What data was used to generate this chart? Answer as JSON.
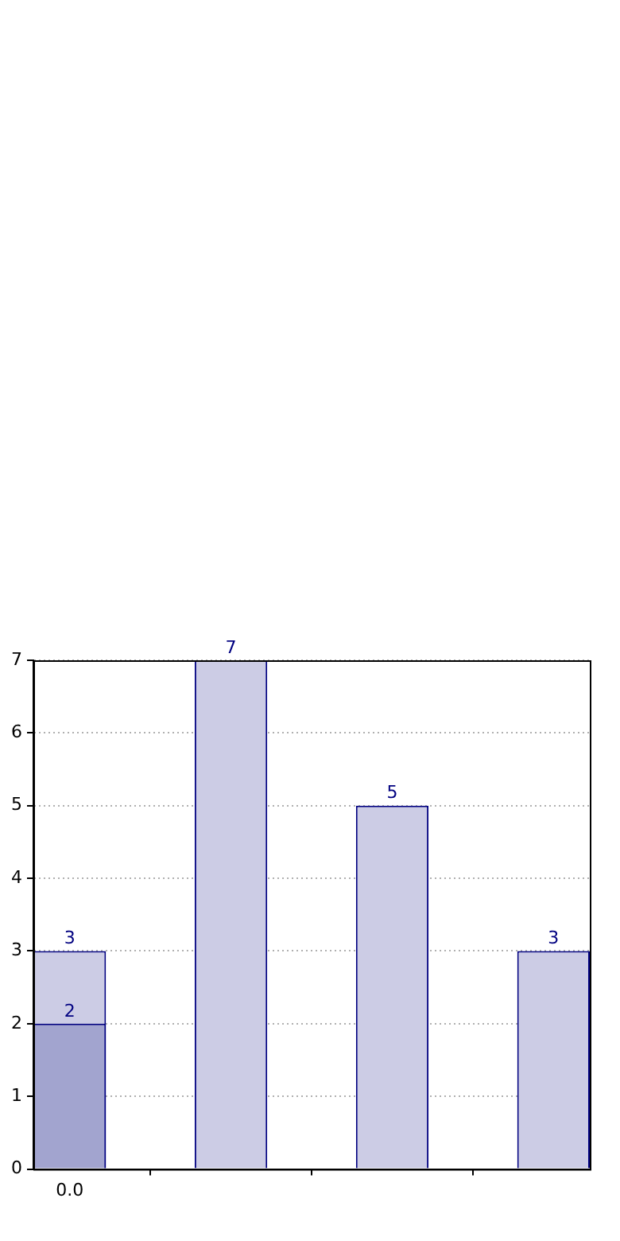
{
  "chart_data": {
    "type": "bar",
    "categories": [
      "0.0",
      null,
      null,
      null
    ],
    "series": [
      {
        "color": "#ccccE5",
        "values": [
          3,
          7,
          5,
          3
        ]
      },
      {
        "color": "#a2a4cf",
        "values": [
          2,
          null,
          null,
          null
        ]
      }
    ],
    "ylim": [
      0,
      7
    ],
    "yticks": [
      0,
      1,
      2,
      3,
      4,
      5,
      6,
      7
    ],
    "grid": true,
    "data_labels": true
  }
}
